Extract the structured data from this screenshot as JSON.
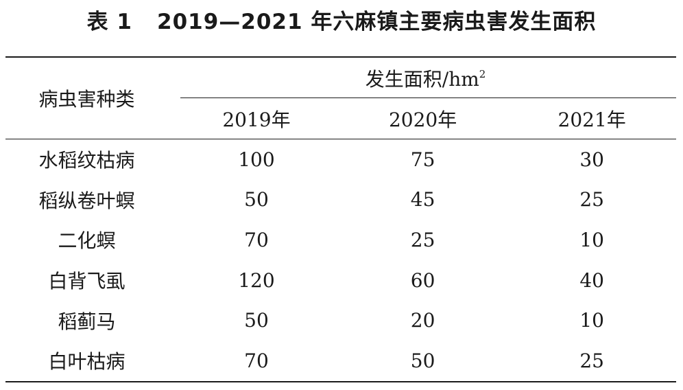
{
  "caption": {
    "label": "表 1",
    "text": "2019—2021 年六麻镇主要病虫害发生面积"
  },
  "table": {
    "row_header": "病虫害种类",
    "group_header": "发生面积/hm",
    "group_header_sup": "2",
    "years": [
      "2019年",
      "2020年",
      "2021年"
    ],
    "rows": [
      {
        "name": "水稻纹枯病",
        "values": [
          "100",
          "75",
          "30"
        ]
      },
      {
        "name": "稻纵卷叶螟",
        "values": [
          "50",
          "45",
          "25"
        ]
      },
      {
        "name": "二化螟",
        "values": [
          "70",
          "25",
          "10"
        ]
      },
      {
        "name": "白背飞虱",
        "values": [
          "120",
          "60",
          "40"
        ]
      },
      {
        "name": "稻蓟马",
        "values": [
          "50",
          "20",
          "10"
        ]
      },
      {
        "name": "白叶枯病",
        "values": [
          "70",
          "50",
          "25"
        ]
      }
    ]
  }
}
